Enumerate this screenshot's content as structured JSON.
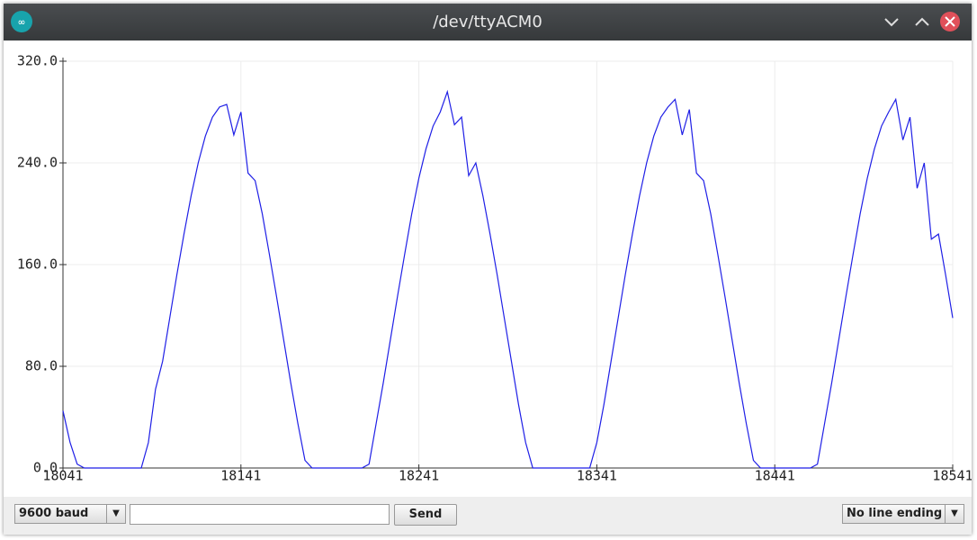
{
  "window": {
    "title": "/dev/ttyACM0"
  },
  "chart_data": {
    "type": "line",
    "x": [
      18041,
      18045,
      18049,
      18053,
      18057,
      18061,
      18065,
      18069,
      18073,
      18077,
      18081,
      18085,
      18089,
      18093,
      18097,
      18101,
      18105,
      18109,
      18113,
      18117,
      18121,
      18125,
      18129,
      18133,
      18137,
      18141,
      18145,
      18149,
      18153,
      18157,
      18161,
      18165,
      18169,
      18173,
      18177,
      18181,
      18185,
      18189,
      18193,
      18197,
      18201,
      18205,
      18209,
      18213,
      18217,
      18221,
      18225,
      18229,
      18233,
      18237,
      18241,
      18245,
      18249,
      18253,
      18257,
      18261,
      18265,
      18269,
      18273,
      18277,
      18281,
      18285,
      18289,
      18293,
      18297,
      18301,
      18305,
      18309,
      18313,
      18317,
      18321,
      18325,
      18329,
      18333,
      18337,
      18341,
      18345,
      18349,
      18353,
      18357,
      18361,
      18365,
      18369,
      18373,
      18377,
      18381,
      18385,
      18389,
      18393,
      18397,
      18401,
      18405,
      18409,
      18413,
      18417,
      18421,
      18425,
      18429,
      18433,
      18437,
      18441,
      18445,
      18449,
      18453,
      18457,
      18461,
      18465,
      18469,
      18473,
      18477,
      18481,
      18485,
      18489,
      18493,
      18497,
      18501,
      18505,
      18509,
      18513,
      18517,
      18521,
      18525,
      18529,
      18533,
      18537,
      18541
    ],
    "series": [
      {
        "color": "#1f1fe6",
        "values": [
          45,
          20,
          3,
          0,
          0,
          0,
          0,
          0,
          0,
          0,
          0,
          0,
          20,
          62,
          84,
          118,
          152,
          184,
          214,
          240,
          261,
          276,
          284,
          286,
          262,
          280,
          232,
          226,
          200,
          168,
          135,
          101,
          67,
          35,
          6,
          0,
          0,
          0,
          0,
          0,
          0,
          0,
          0,
          3,
          35,
          67,
          101,
          135,
          168,
          200,
          228,
          251,
          269,
          280,
          296,
          270,
          276,
          230,
          240,
          214,
          184,
          152,
          118,
          84,
          50,
          20,
          0,
          0,
          0,
          0,
          0,
          0,
          0,
          0,
          0,
          20,
          50,
          84,
          118,
          152,
          184,
          214,
          240,
          261,
          276,
          284,
          290,
          262,
          282,
          232,
          226,
          200,
          168,
          135,
          101,
          67,
          35,
          6,
          0,
          0,
          0,
          0,
          0,
          0,
          0,
          0,
          3,
          35,
          67,
          101,
          135,
          168,
          200,
          228,
          251,
          269,
          280,
          290,
          258,
          276,
          220,
          240,
          180,
          184,
          152,
          118
        ]
      }
    ],
    "xlim": [
      18041,
      18541
    ],
    "xticks": [
      18041,
      18141,
      18241,
      18341,
      18441,
      18541
    ],
    "ylim": [
      0,
      320
    ],
    "yticks": [
      {
        "value": 0,
        "label": "0.0"
      },
      {
        "value": 80,
        "label": "80.0"
      },
      {
        "value": 160,
        "label": "160.0"
      },
      {
        "value": 240,
        "label": "240.0"
      },
      {
        "value": 320,
        "label": "320.0"
      }
    ],
    "grid": true
  },
  "controls": {
    "baud": "9600 baud",
    "send": "Send",
    "line_ending": "No line ending"
  }
}
